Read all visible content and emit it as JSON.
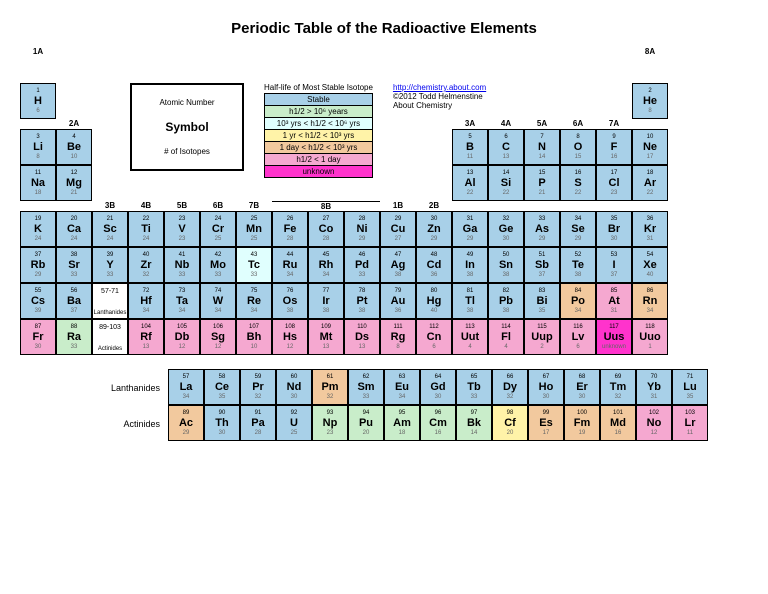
{
  "title": "Periodic Table of the Radioactive Elements",
  "legend_key": {
    "l1": "Atomic Number",
    "l2": "Symbol",
    "l3": "# of Isotopes"
  },
  "halflife": {
    "title": "Half-life of Most Stable Isotope",
    "items": [
      {
        "label": "Stable",
        "color": "#a8d0e8"
      },
      {
        "label": "h1/2 > 10⁶ years",
        "color": "#c9edca"
      },
      {
        "label": "10³ yrs < h1/2 < 10⁶ yrs",
        "color": "#e0fffe"
      },
      {
        "label": "1 yr < h1/2 < 10³ yrs",
        "color": "#fff3a8"
      },
      {
        "label": "1 day < h1/2 < 10³ yrs",
        "color": "#f2c99e"
      },
      {
        "label": "h1/2 < 1 day",
        "color": "#f5a8d0"
      },
      {
        "label": "unknown",
        "color": "#ff33cc"
      }
    ]
  },
  "credits": {
    "url": "http://chemistry.about.com",
    "copyright": "©2012 Todd Helmenstine",
    "site": "About Chemistry"
  },
  "groups": [
    "1A",
    "2A",
    "3B",
    "4B",
    "5B",
    "6B",
    "7B",
    "8B",
    "1B",
    "2B",
    "3A",
    "4A",
    "5A",
    "6A",
    "7A",
    "8A"
  ],
  "colors": {
    "stable": "#a8d0e8",
    "m": "#c9edca",
    "k": "#e0fffe",
    "y": "#fff3a8",
    "o": "#f2c99e",
    "p": "#f5a8d0",
    "u": "#ff33cc"
  },
  "ranges": {
    "lan": "57-71",
    "lan_label": "Lanthanides",
    "act": "89-103",
    "act_label": "Actinides"
  },
  "main": [
    [
      {
        "n": 1,
        "s": "H",
        "i": 6,
        "c": "stable"
      },
      null,
      null,
      null,
      null,
      null,
      null,
      null,
      null,
      null,
      null,
      null,
      null,
      null,
      null,
      null,
      null,
      {
        "n": 2,
        "s": "He",
        "i": 8,
        "c": "stable"
      }
    ],
    [
      {
        "n": 3,
        "s": "Li",
        "i": 8,
        "c": "stable"
      },
      {
        "n": 4,
        "s": "Be",
        "i": 10,
        "c": "stable"
      },
      null,
      null,
      null,
      null,
      null,
      null,
      null,
      null,
      null,
      null,
      {
        "n": 5,
        "s": "B",
        "i": 11,
        "c": "stable"
      },
      {
        "n": 6,
        "s": "C",
        "i": 13,
        "c": "stable"
      },
      {
        "n": 7,
        "s": "N",
        "i": 14,
        "c": "stable"
      },
      {
        "n": 8,
        "s": "O",
        "i": 15,
        "c": "stable"
      },
      {
        "n": 9,
        "s": "F",
        "i": 16,
        "c": "stable"
      },
      {
        "n": 10,
        "s": "Ne",
        "i": 17,
        "c": "stable"
      }
    ],
    [
      {
        "n": 11,
        "s": "Na",
        "i": 18,
        "c": "stable"
      },
      {
        "n": 12,
        "s": "Mg",
        "i": 21,
        "c": "stable"
      },
      null,
      null,
      null,
      null,
      null,
      null,
      null,
      null,
      null,
      null,
      {
        "n": 13,
        "s": "Al",
        "i": 22,
        "c": "stable"
      },
      {
        "n": 14,
        "s": "Si",
        "i": 22,
        "c": "stable"
      },
      {
        "n": 15,
        "s": "P",
        "i": 21,
        "c": "stable"
      },
      {
        "n": 16,
        "s": "S",
        "i": 22,
        "c": "stable"
      },
      {
        "n": 17,
        "s": "Cl",
        "i": 23,
        "c": "stable"
      },
      {
        "n": 18,
        "s": "Ar",
        "i": 22,
        "c": "stable"
      }
    ],
    [
      {
        "n": 19,
        "s": "K",
        "i": 24,
        "c": "stable"
      },
      {
        "n": 20,
        "s": "Ca",
        "i": 24,
        "c": "stable"
      },
      {
        "n": 21,
        "s": "Sc",
        "i": 24,
        "c": "stable"
      },
      {
        "n": 22,
        "s": "Ti",
        "i": 24,
        "c": "stable"
      },
      {
        "n": 23,
        "s": "V",
        "i": 23,
        "c": "stable"
      },
      {
        "n": 24,
        "s": "Cr",
        "i": 25,
        "c": "stable"
      },
      {
        "n": 25,
        "s": "Mn",
        "i": 25,
        "c": "stable"
      },
      {
        "n": 26,
        "s": "Fe",
        "i": 28,
        "c": "stable"
      },
      {
        "n": 27,
        "s": "Co",
        "i": 28,
        "c": "stable"
      },
      {
        "n": 28,
        "s": "Ni",
        "i": 29,
        "c": "stable"
      },
      {
        "n": 29,
        "s": "Cu",
        "i": 27,
        "c": "stable"
      },
      {
        "n": 30,
        "s": "Zn",
        "i": 29,
        "c": "stable"
      },
      {
        "n": 31,
        "s": "Ga",
        "i": 29,
        "c": "stable"
      },
      {
        "n": 32,
        "s": "Ge",
        "i": 30,
        "c": "stable"
      },
      {
        "n": 33,
        "s": "As",
        "i": 29,
        "c": "stable"
      },
      {
        "n": 34,
        "s": "Se",
        "i": 29,
        "c": "stable"
      },
      {
        "n": 35,
        "s": "Br",
        "i": 30,
        "c": "stable"
      },
      {
        "n": 36,
        "s": "Kr",
        "i": 31,
        "c": "stable"
      }
    ],
    [
      {
        "n": 37,
        "s": "Rb",
        "i": 29,
        "c": "stable"
      },
      {
        "n": 38,
        "s": "Sr",
        "i": 33,
        "c": "stable"
      },
      {
        "n": 39,
        "s": "Y",
        "i": 33,
        "c": "stable"
      },
      {
        "n": 40,
        "s": "Zr",
        "i": 32,
        "c": "stable"
      },
      {
        "n": 41,
        "s": "Nb",
        "i": 33,
        "c": "stable"
      },
      {
        "n": 42,
        "s": "Mo",
        "i": 33,
        "c": "stable"
      },
      {
        "n": 43,
        "s": "Tc",
        "i": 33,
        "c": "k"
      },
      {
        "n": 44,
        "s": "Ru",
        "i": 34,
        "c": "stable"
      },
      {
        "n": 45,
        "s": "Rh",
        "i": 34,
        "c": "stable"
      },
      {
        "n": 46,
        "s": "Pd",
        "i": 33,
        "c": "stable"
      },
      {
        "n": 47,
        "s": "Ag",
        "i": 38,
        "c": "stable"
      },
      {
        "n": 48,
        "s": "Cd",
        "i": 36,
        "c": "stable"
      },
      {
        "n": 49,
        "s": "In",
        "i": 38,
        "c": "stable"
      },
      {
        "n": 50,
        "s": "Sn",
        "i": 38,
        "c": "stable"
      },
      {
        "n": 51,
        "s": "Sb",
        "i": 37,
        "c": "stable"
      },
      {
        "n": 52,
        "s": "Te",
        "i": 38,
        "c": "stable"
      },
      {
        "n": 53,
        "s": "I",
        "i": 37,
        "c": "stable"
      },
      {
        "n": 54,
        "s": "Xe",
        "i": 40,
        "c": "stable"
      }
    ],
    [
      {
        "n": 55,
        "s": "Cs",
        "i": 39,
        "c": "stable"
      },
      {
        "n": 56,
        "s": "Ba",
        "i": 37,
        "c": "stable"
      },
      "LAN",
      {
        "n": 72,
        "s": "Hf",
        "i": 34,
        "c": "stable"
      },
      {
        "n": 73,
        "s": "Ta",
        "i": 34,
        "c": "stable"
      },
      {
        "n": 74,
        "s": "W",
        "i": 34,
        "c": "stable"
      },
      {
        "n": 75,
        "s": "Re",
        "i": 34,
        "c": "stable"
      },
      {
        "n": 76,
        "s": "Os",
        "i": 38,
        "c": "stable"
      },
      {
        "n": 77,
        "s": "Ir",
        "i": 38,
        "c": "stable"
      },
      {
        "n": 78,
        "s": "Pt",
        "i": 38,
        "c": "stable"
      },
      {
        "n": 79,
        "s": "Au",
        "i": 36,
        "c": "stable"
      },
      {
        "n": 80,
        "s": "Hg",
        "i": 40,
        "c": "stable"
      },
      {
        "n": 81,
        "s": "Tl",
        "i": 38,
        "c": "stable"
      },
      {
        "n": 82,
        "s": "Pb",
        "i": 38,
        "c": "stable"
      },
      {
        "n": 83,
        "s": "Bi",
        "i": 35,
        "c": "stable"
      },
      {
        "n": 84,
        "s": "Po",
        "i": 34,
        "c": "o"
      },
      {
        "n": 85,
        "s": "At",
        "i": 31,
        "c": "p"
      },
      {
        "n": 86,
        "s": "Rn",
        "i": 34,
        "c": "o"
      }
    ],
    [
      {
        "n": 87,
        "s": "Fr",
        "i": 30,
        "c": "p"
      },
      {
        "n": 88,
        "s": "Ra",
        "i": 33,
        "c": "m"
      },
      "ACT",
      {
        "n": 104,
        "s": "Rf",
        "i": 13,
        "c": "p"
      },
      {
        "n": 105,
        "s": "Db",
        "i": 12,
        "c": "p"
      },
      {
        "n": 106,
        "s": "Sg",
        "i": 12,
        "c": "p"
      },
      {
        "n": 107,
        "s": "Bh",
        "i": 10,
        "c": "p"
      },
      {
        "n": 108,
        "s": "Hs",
        "i": 12,
        "c": "p"
      },
      {
        "n": 109,
        "s": "Mt",
        "i": 13,
        "c": "p"
      },
      {
        "n": 110,
        "s": "Ds",
        "i": 13,
        "c": "p"
      },
      {
        "n": 111,
        "s": "Rg",
        "i": 8,
        "c": "p"
      },
      {
        "n": 112,
        "s": "Cn",
        "i": 6,
        "c": "p"
      },
      {
        "n": 113,
        "s": "Uut",
        "i": 4,
        "c": "p"
      },
      {
        "n": 114,
        "s": "Fl",
        "i": 4,
        "c": "p"
      },
      {
        "n": 115,
        "s": "Uup",
        "i": 2,
        "c": "p"
      },
      {
        "n": 116,
        "s": "Lv",
        "i": 6,
        "c": "p"
      },
      {
        "n": 117,
        "s": "Uus",
        "i": "unknown",
        "c": "u"
      },
      {
        "n": 118,
        "s": "Uuo",
        "i": 1,
        "c": "p"
      }
    ]
  ],
  "lan": [
    {
      "n": 57,
      "s": "La",
      "i": 34,
      "c": "stable"
    },
    {
      "n": 58,
      "s": "Ce",
      "i": 35,
      "c": "stable"
    },
    {
      "n": 59,
      "s": "Pr",
      "i": 32,
      "c": "stable"
    },
    {
      "n": 60,
      "s": "Nd",
      "i": 30,
      "c": "stable"
    },
    {
      "n": 61,
      "s": "Pm",
      "i": 32,
      "c": "o"
    },
    {
      "n": 62,
      "s": "Sm",
      "i": 33,
      "c": "stable"
    },
    {
      "n": 63,
      "s": "Eu",
      "i": 34,
      "c": "stable"
    },
    {
      "n": 64,
      "s": "Gd",
      "i": 30,
      "c": "stable"
    },
    {
      "n": 65,
      "s": "Tb",
      "i": 33,
      "c": "stable"
    },
    {
      "n": 66,
      "s": "Dy",
      "i": 32,
      "c": "stable"
    },
    {
      "n": 67,
      "s": "Ho",
      "i": 30,
      "c": "stable"
    },
    {
      "n": 68,
      "s": "Er",
      "i": 30,
      "c": "stable"
    },
    {
      "n": 69,
      "s": "Tm",
      "i": 32,
      "c": "stable"
    },
    {
      "n": 70,
      "s": "Yb",
      "i": 31,
      "c": "stable"
    },
    {
      "n": 71,
      "s": "Lu",
      "i": 35,
      "c": "stable"
    }
  ],
  "act": [
    {
      "n": 89,
      "s": "Ac",
      "i": 29,
      "c": "o"
    },
    {
      "n": 90,
      "s": "Th",
      "i": 30,
      "c": "stable"
    },
    {
      "n": 91,
      "s": "Pa",
      "i": 28,
      "c": "stable"
    },
    {
      "n": 92,
      "s": "U",
      "i": 25,
      "c": "stable"
    },
    {
      "n": 93,
      "s": "Np",
      "i": 23,
      "c": "m"
    },
    {
      "n": 94,
      "s": "Pu",
      "i": 20,
      "c": "m"
    },
    {
      "n": 95,
      "s": "Am",
      "i": 18,
      "c": "m"
    },
    {
      "n": 96,
      "s": "Cm",
      "i": 16,
      "c": "m"
    },
    {
      "n": 97,
      "s": "Bk",
      "i": 14,
      "c": "m"
    },
    {
      "n": 98,
      "s": "Cf",
      "i": 20,
      "c": "y"
    },
    {
      "n": 99,
      "s": "Es",
      "i": 17,
      "c": "o"
    },
    {
      "n": 100,
      "s": "Fm",
      "i": 19,
      "c": "o"
    },
    {
      "n": 101,
      "s": "Md",
      "i": 16,
      "c": "o"
    },
    {
      "n": 102,
      "s": "No",
      "i": 12,
      "c": "p"
    },
    {
      "n": 103,
      "s": "Lr",
      "i": 11,
      "c": "p"
    }
  ]
}
